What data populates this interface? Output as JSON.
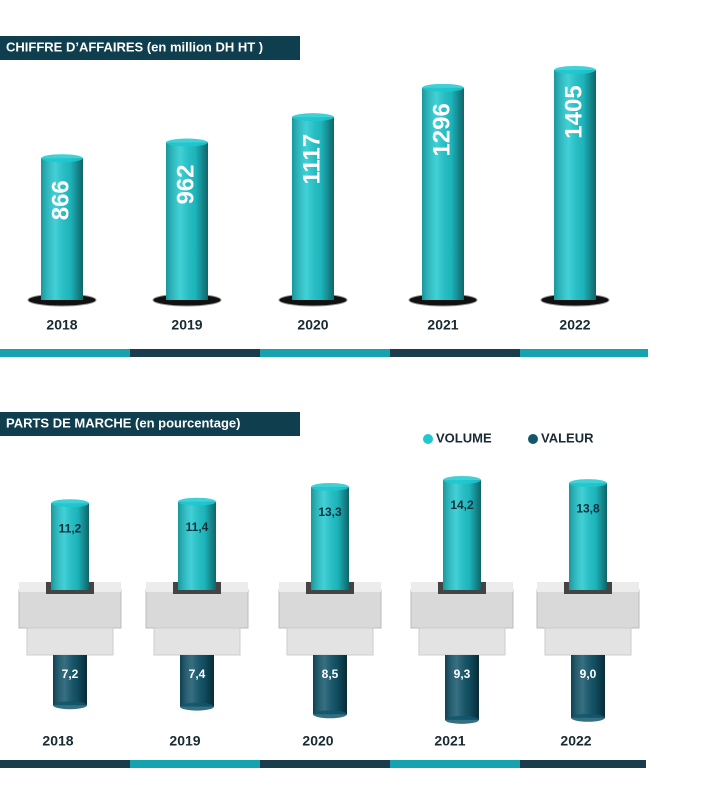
{
  "chart_data": [
    {
      "type": "bar",
      "title": "CHIFFRE D’AFFAIRES (en million DH HT )",
      "categories": [
        "2018",
        "2019",
        "2020",
        "2021",
        "2022"
      ],
      "values": [
        866,
        962,
        1117,
        1296,
        1405
      ],
      "color": "#1fc8cf"
    },
    {
      "type": "bar",
      "title": "PARTS DE MARCHE (en pourcentage)",
      "categories": [
        "2018",
        "2019",
        "2020",
        "2021",
        "2022"
      ],
      "series": [
        {
          "name": "VOLUME",
          "color": "#1fc8cf",
          "values": [
            11.2,
            11.4,
            13.3,
            14.2,
            13.8
          ],
          "value_labels": [
            "11,2",
            "11,4",
            "13,3",
            "14,2",
            "13,8"
          ]
        },
        {
          "name": "VALEUR",
          "color": "#12566b",
          "values": [
            7.2,
            7.4,
            8.5,
            9.3,
            9.0
          ],
          "value_labels": [
            "7,2",
            "7,4",
            "8,5",
            "9,3",
            "9,0"
          ]
        }
      ]
    }
  ]
}
